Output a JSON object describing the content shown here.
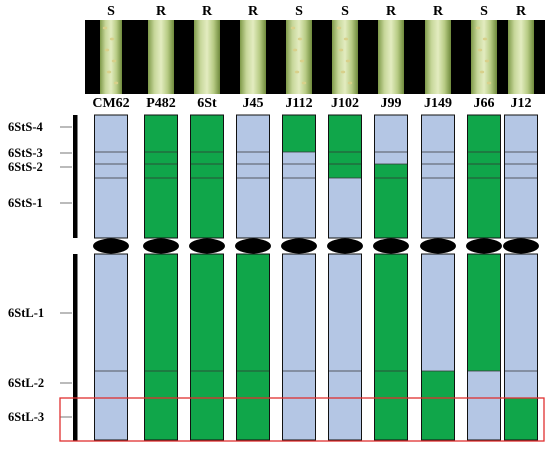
{
  "columns": [
    {
      "phenotype": "S",
      "name": "CM62",
      "short_arm": [
        0,
        0,
        0,
        0
      ],
      "long_arm": [
        0,
        0,
        0
      ]
    },
    {
      "phenotype": "R",
      "name": "P482",
      "short_arm": [
        1,
        1,
        1,
        1
      ],
      "long_arm": [
        1,
        1,
        1
      ]
    },
    {
      "phenotype": "R",
      "name": "6St",
      "short_arm": [
        1,
        1,
        1,
        1
      ],
      "long_arm": [
        1,
        1,
        1
      ]
    },
    {
      "phenotype": "R",
      "name": "J45",
      "short_arm": [
        0,
        0,
        0,
        0
      ],
      "long_arm": [
        1,
        1,
        1
      ]
    },
    {
      "phenotype": "S",
      "name": "J112",
      "short_arm": [
        1,
        0,
        0,
        0
      ],
      "long_arm": [
        0,
        0,
        0
      ]
    },
    {
      "phenotype": "S",
      "name": "J102",
      "short_arm": [
        1,
        1,
        1,
        0
      ],
      "long_arm": [
        0,
        0,
        0
      ]
    },
    {
      "phenotype": "R",
      "name": "J99",
      "short_arm": [
        0,
        0,
        1,
        1
      ],
      "long_arm": [
        1,
        1,
        1
      ]
    },
    {
      "phenotype": "R",
      "name": "J149",
      "short_arm": [
        0,
        0,
        0,
        0
      ],
      "long_arm": [
        0,
        1,
        1
      ]
    },
    {
      "phenotype": "S",
      "name": "J66",
      "short_arm": [
        1,
        1,
        1,
        1
      ],
      "long_arm": [
        1,
        0,
        0
      ]
    },
    {
      "phenotype": "R",
      "name": "J12",
      "short_arm": [
        0,
        0,
        0,
        0
      ],
      "long_arm": [
        0,
        0,
        1
      ]
    }
  ],
  "bin_labels": [
    "6StS-4",
    "6StS-3",
    "6StS-2",
    "6StS-1",
    "6StL-1",
    "6StL-2",
    "6StL-3"
  ],
  "colors": {
    "st_segment": "#10a64a",
    "wheat_segment": "#b4c6e4",
    "centromere": "#000000",
    "highlight_box": "#e03030",
    "bin_bar": "#000000"
  }
}
